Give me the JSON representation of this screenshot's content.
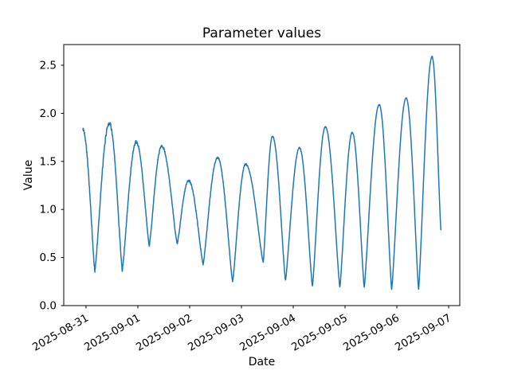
{
  "chart_data": {
    "type": "line",
    "title": "Parameter values",
    "xlabel": "Date",
    "ylabel": "Value",
    "legend": null,
    "grid": false,
    "line_color": "#1f77b4",
    "line_width": 1.5,
    "background_color": "#ffffff",
    "axis_color": "#000000",
    "x_axis": {
      "unit": "days since 2025-08-31 00:00",
      "lim": [
        -0.43,
        7.215
      ],
      "ticks": [
        {
          "t": 0,
          "label": "2025-08-31"
        },
        {
          "t": 1,
          "label": "2025-09-01"
        },
        {
          "t": 2,
          "label": "2025-09-02"
        },
        {
          "t": 3,
          "label": "2025-09-03"
        },
        {
          "t": 4,
          "label": "2025-09-04"
        },
        {
          "t": 5,
          "label": "2025-09-05"
        },
        {
          "t": 6,
          "label": "2025-09-06"
        },
        {
          "t": 7,
          "label": "2025-09-07"
        }
      ],
      "tick_label_rotation_deg": 30
    },
    "y_axis": {
      "lim": [
        0,
        2.715
      ],
      "ticks": [
        {
          "value": 0.0,
          "label": "0.0"
        },
        {
          "value": 0.5,
          "label": "0.5"
        },
        {
          "value": 1.0,
          "label": "1.0"
        },
        {
          "value": 1.5,
          "label": "1.5"
        },
        {
          "value": 2.0,
          "label": "2.0"
        },
        {
          "value": 2.5,
          "label": "2.5"
        }
      ]
    },
    "series": [
      {
        "name": "parameter-values",
        "extrema_note": "alternating peak/trough control points [t_days, value]; first entry is the initial peak where the trace starts, last entry is the truncated end of the trace mid-descent",
        "extrema": [
          [
            -0.06,
            1.83
          ],
          [
            0.17,
            0.36
          ],
          [
            0.45,
            1.9
          ],
          [
            0.7,
            0.37
          ],
          [
            0.97,
            1.7
          ],
          [
            1.22,
            0.62
          ],
          [
            1.46,
            1.66
          ],
          [
            1.76,
            0.64
          ],
          [
            1.98,
            1.3
          ],
          [
            2.26,
            0.43
          ],
          [
            2.54,
            1.54
          ],
          [
            2.83,
            0.25
          ],
          [
            3.08,
            1.47
          ],
          [
            3.42,
            0.45
          ],
          [
            3.6,
            1.76
          ],
          [
            3.85,
            0.26
          ],
          [
            4.12,
            1.64
          ],
          [
            4.37,
            0.2
          ],
          [
            4.62,
            1.86
          ],
          [
            4.9,
            0.19
          ],
          [
            5.14,
            1.8
          ],
          [
            5.37,
            0.19
          ],
          [
            5.66,
            2.09
          ],
          [
            5.9,
            0.17
          ],
          [
            6.18,
            2.16
          ],
          [
            6.42,
            0.17
          ],
          [
            6.68,
            2.59
          ],
          [
            6.85,
            0.79
          ]
        ],
        "waveform": "rounded peaks, sharp V troughs (exponent 1.25 sine interpolation)",
        "noise": {
          "amp_floor": 0.006,
          "amp_start_extra": 0.024,
          "decay_days": 1.8,
          "seed": 42
        },
        "sample_step_days": 0.004
      }
    ]
  }
}
